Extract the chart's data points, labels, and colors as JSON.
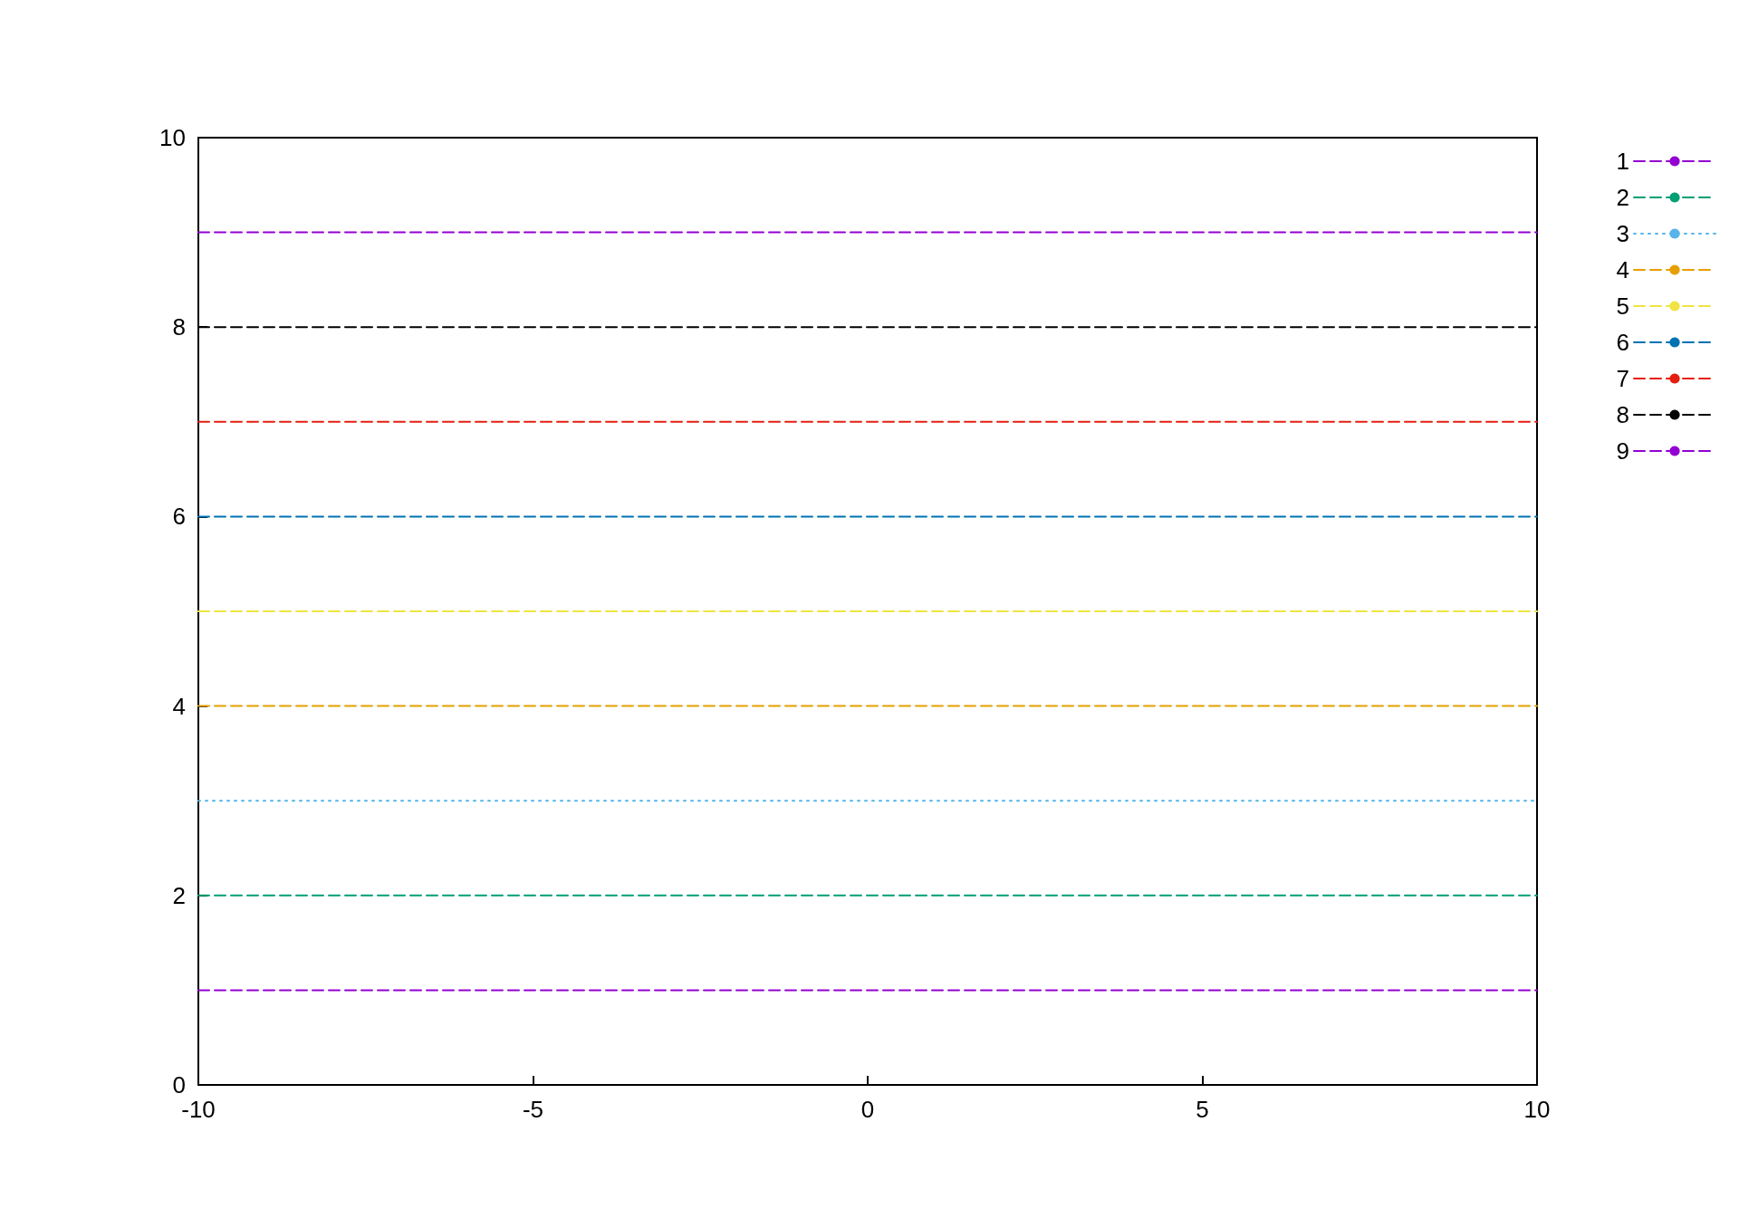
{
  "chart_data": {
    "type": "line",
    "x": [
      -10,
      10
    ],
    "series": [
      {
        "name": "1",
        "color": "#9400d3",
        "values": [
          1,
          1
        ],
        "line_style": "dashed"
      },
      {
        "name": "2",
        "color": "#009e73",
        "values": [
          2,
          2
        ],
        "line_style": "dashed"
      },
      {
        "name": "3",
        "color": "#56b4e9",
        "values": [
          3,
          3
        ],
        "line_style": "dotted"
      },
      {
        "name": "4",
        "color": "#e69f00",
        "values": [
          4,
          4
        ],
        "line_style": "dashed"
      },
      {
        "name": "5",
        "color": "#f0e442",
        "values": [
          5,
          5
        ],
        "line_style": "dashed"
      },
      {
        "name": "6",
        "color": "#0072b2",
        "values": [
          6,
          6
        ],
        "line_style": "dashed"
      },
      {
        "name": "7",
        "color": "#e51e10",
        "values": [
          7,
          7
        ],
        "line_style": "dashed"
      },
      {
        "name": "8",
        "color": "#000000",
        "values": [
          8,
          8
        ],
        "line_style": "dashed"
      },
      {
        "name": "9",
        "color": "#9400d3",
        "values": [
          9,
          9
        ],
        "line_style": "dashed"
      }
    ],
    "xlim": [
      -10,
      10
    ],
    "xticks": [
      -10,
      -5,
      0,
      5,
      10
    ],
    "ylim": [
      0,
      10
    ],
    "yticks": [
      0,
      2,
      4,
      6,
      8,
      10
    ],
    "legend": "top right",
    "marker": "none",
    "grid": false
  }
}
